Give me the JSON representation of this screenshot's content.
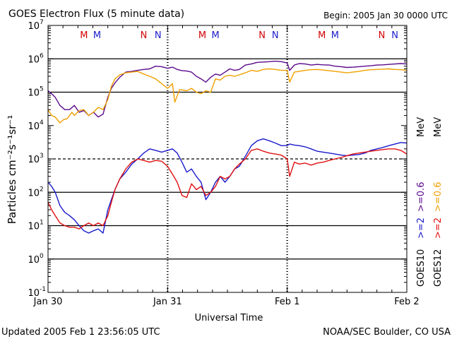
{
  "chart_data": {
    "type": "line",
    "title": "GOES Electron Flux (5 minute data)",
    "begin_label": "Begin: 2005 Jan 30 0000 UTC",
    "xlabel": "Universal Time",
    "ylabel": "Particles cm⁻²s⁻¹sr⁻¹",
    "y_scale": "log",
    "ylim": [
      0.1,
      10000000
    ],
    "y_ticks": [
      {
        "value": 10000000,
        "base": "10",
        "exp": "7"
      },
      {
        "value": 1000000,
        "base": "10",
        "exp": "6"
      },
      {
        "value": 100000,
        "base": "10",
        "exp": "5"
      },
      {
        "value": 10000,
        "base": "10",
        "exp": "4"
      },
      {
        "value": 1000,
        "base": "10",
        "exp": "3"
      },
      {
        "value": 100,
        "base": "10",
        "exp": "2"
      },
      {
        "value": 10,
        "base": "10",
        "exp": "1"
      },
      {
        "value": 1,
        "base": "10",
        "exp": "0"
      },
      {
        "value": 0.1,
        "base": "10",
        "exp": "-1"
      }
    ],
    "x_unit": "days since Jan 30 00:00 UTC",
    "xlim": [
      0,
      3
    ],
    "x_ticks": [
      {
        "value": 0,
        "label": "Jan 30"
      },
      {
        "value": 1,
        "label": "Jan 31"
      },
      {
        "value": 2,
        "label": "Feb 1"
      },
      {
        "value": 3,
        "label": "Feb 2"
      }
    ],
    "day_boundaries": [
      1,
      2
    ],
    "solid_gridlines": [
      1000000,
      100000,
      100,
      10,
      1
    ],
    "dashed_gridlines": [
      1000
    ],
    "grid_color": "#000000",
    "mn_markers": [
      {
        "x": 0.3,
        "label": "M",
        "color": "#d40000"
      },
      {
        "x": 0.41,
        "label": "M",
        "color": "#1a1acc"
      },
      {
        "x": 0.8,
        "label": "N",
        "color": "#d40000"
      },
      {
        "x": 0.92,
        "label": "N",
        "color": "#1a1acc"
      },
      {
        "x": 1.29,
        "label": "M",
        "color": "#d40000"
      },
      {
        "x": 1.4,
        "label": "M",
        "color": "#1a1acc"
      },
      {
        "x": 1.79,
        "label": "N",
        "color": "#d40000"
      },
      {
        "x": 1.9,
        "label": "N",
        "color": "#1a1acc"
      },
      {
        "x": 2.29,
        "label": "M",
        "color": "#d40000"
      },
      {
        "x": 2.4,
        "label": "M",
        "color": "#1a1acc"
      },
      {
        "x": 2.79,
        "label": "N",
        "color": "#d40000"
      },
      {
        "x": 2.9,
        "label": "N",
        "color": "#1a1acc"
      }
    ],
    "legend": {
      "placement": "right",
      "goes10": "GOES10",
      "goes12": "GOES12",
      "g10_2": ">=2",
      "g10_06": ">=0.6",
      "g12_2": ">=2",
      "g12_06": ">=0.6",
      "mev_upper": "MeV",
      "mev_lower": "MeV"
    },
    "series": [
      {
        "name": "GOES10 >=0.6 MeV",
        "color": "#5a0a8c",
        "x": [
          0,
          0.03,
          0.06,
          0.1,
          0.14,
          0.18,
          0.22,
          0.26,
          0.3,
          0.34,
          0.38,
          0.42,
          0.46,
          0.5,
          0.53,
          0.56,
          0.6,
          0.65,
          0.7,
          0.75,
          0.8,
          0.85,
          0.9,
          0.95,
          1.0,
          1.04,
          1.08,
          1.12,
          1.16,
          1.2,
          1.24,
          1.28,
          1.32,
          1.36,
          1.4,
          1.44,
          1.48,
          1.52,
          1.56,
          1.6,
          1.65,
          1.7,
          1.75,
          1.8,
          1.85,
          1.9,
          1.95,
          2.0,
          2.02,
          2.06,
          2.1,
          2.15,
          2.2,
          2.25,
          2.3,
          2.35,
          2.4,
          2.45,
          2.5,
          2.55,
          2.6,
          2.65,
          2.7,
          2.75,
          2.8,
          2.85,
          2.9,
          2.95,
          3.0
        ],
        "values": [
          110000,
          90000,
          70000,
          40000,
          30000,
          30000,
          40000,
          25000,
          28000,
          20000,
          25000,
          18000,
          22000,
          70000,
          130000,
          190000,
          280000,
          400000,
          420000,
          450000,
          480000,
          500000,
          600000,
          580000,
          520000,
          560000,
          480000,
          440000,
          430000,
          400000,
          300000,
          250000,
          200000,
          280000,
          350000,
          320000,
          400000,
          500000,
          450000,
          480000,
          650000,
          700000,
          780000,
          800000,
          820000,
          850000,
          820000,
          750000,
          450000,
          650000,
          720000,
          700000,
          650000,
          680000,
          660000,
          650000,
          600000,
          580000,
          550000,
          560000,
          580000,
          600000,
          620000,
          650000,
          660000,
          680000,
          700000,
          720000,
          700000
        ]
      },
      {
        "name": "GOES12 >=0.6 MeV",
        "color": "#f0a000",
        "x": [
          0,
          0.03,
          0.06,
          0.1,
          0.13,
          0.16,
          0.18,
          0.2,
          0.22,
          0.26,
          0.3,
          0.34,
          0.38,
          0.42,
          0.46,
          0.5,
          0.53,
          0.56,
          0.6,
          0.65,
          0.7,
          0.75,
          0.8,
          0.85,
          0.9,
          0.95,
          1.0,
          1.04,
          1.06,
          1.1,
          1.16,
          1.2,
          1.24,
          1.28,
          1.32,
          1.36,
          1.4,
          1.44,
          1.48,
          1.52,
          1.56,
          1.6,
          1.65,
          1.7,
          1.75,
          1.8,
          1.85,
          1.9,
          1.95,
          2.0,
          2.02,
          2.06,
          2.1,
          2.15,
          2.2,
          2.25,
          2.3,
          2.35,
          2.4,
          2.45,
          2.5,
          2.55,
          2.6,
          2.65,
          2.7,
          2.75,
          2.8,
          2.85,
          2.9,
          2.95,
          3.0
        ],
        "values": [
          30000,
          20000,
          18000,
          12000,
          15000,
          16000,
          20000,
          25000,
          20000,
          28000,
          30000,
          20000,
          25000,
          35000,
          30000,
          60000,
          150000,
          250000,
          330000,
          380000,
          400000,
          420000,
          350000,
          300000,
          250000,
          180000,
          130000,
          180000,
          50000,
          120000,
          110000,
          130000,
          100000,
          90000,
          110000,
          100000,
          250000,
          230000,
          300000,
          320000,
          300000,
          330000,
          380000,
          450000,
          420000,
          480000,
          500000,
          480000,
          450000,
          450000,
          200000,
          400000,
          420000,
          450000,
          470000,
          480000,
          460000,
          440000,
          420000,
          400000,
          380000,
          400000,
          420000,
          450000,
          470000,
          480000,
          490000,
          500000,
          480000,
          470000,
          450000
        ]
      },
      {
        "name": "GOES10 >=2 MeV",
        "color": "#1a1acc",
        "x": [
          0,
          0.03,
          0.06,
          0.1,
          0.14,
          0.18,
          0.22,
          0.26,
          0.3,
          0.34,
          0.38,
          0.42,
          0.46,
          0.5,
          0.53,
          0.56,
          0.6,
          0.65,
          0.7,
          0.75,
          0.8,
          0.85,
          0.9,
          0.95,
          1.0,
          1.04,
          1.08,
          1.12,
          1.16,
          1.2,
          1.24,
          1.28,
          1.32,
          1.36,
          1.4,
          1.44,
          1.48,
          1.52,
          1.56,
          1.6,
          1.65,
          1.7,
          1.75,
          1.8,
          1.85,
          1.9,
          1.95,
          2.0,
          2.02,
          2.06,
          2.1,
          2.15,
          2.2,
          2.25,
          2.3,
          2.35,
          2.4,
          2.45,
          2.5,
          2.55,
          2.6,
          2.65,
          2.7,
          2.75,
          2.8,
          2.85,
          2.9,
          2.95,
          3.0
        ],
        "values": [
          200,
          150,
          100,
          40,
          25,
          20,
          15,
          10,
          7,
          6,
          7,
          8,
          6,
          30,
          60,
          120,
          250,
          400,
          700,
          1000,
          1500,
          2000,
          1800,
          1600,
          1800,
          2000,
          1500,
          800,
          400,
          500,
          300,
          200,
          60,
          100,
          200,
          300,
          200,
          300,
          500,
          600,
          1200,
          2500,
          3500,
          4000,
          3500,
          3000,
          2500,
          2500,
          2800,
          2600,
          2500,
          2300,
          2000,
          1700,
          1600,
          1500,
          1400,
          1300,
          1250,
          1300,
          1350,
          1500,
          1800,
          2000,
          2200,
          2500,
          2800,
          3100,
          3000
        ]
      },
      {
        "name": "GOES12 >=2 MeV",
        "color": "#e01010",
        "x": [
          0,
          0.03,
          0.06,
          0.1,
          0.14,
          0.18,
          0.22,
          0.26,
          0.3,
          0.34,
          0.38,
          0.42,
          0.46,
          0.5,
          0.53,
          0.56,
          0.6,
          0.65,
          0.7,
          0.75,
          0.8,
          0.85,
          0.9,
          0.95,
          1.0,
          1.04,
          1.08,
          1.12,
          1.16,
          1.2,
          1.24,
          1.28,
          1.32,
          1.36,
          1.4,
          1.44,
          1.48,
          1.52,
          1.56,
          1.6,
          1.65,
          1.7,
          1.75,
          1.8,
          1.85,
          1.9,
          1.95,
          2.0,
          2.02,
          2.06,
          2.1,
          2.15,
          2.2,
          2.25,
          2.3,
          2.35,
          2.4,
          2.45,
          2.5,
          2.55,
          2.6,
          2.65,
          2.7,
          2.75,
          2.8,
          2.85,
          2.9,
          2.95,
          3.0
        ],
        "values": [
          50,
          30,
          20,
          12,
          10,
          9,
          9,
          8,
          10,
          12,
          10,
          12,
          10,
          20,
          50,
          120,
          250,
          500,
          800,
          1000,
          900,
          800,
          900,
          850,
          600,
          350,
          200,
          80,
          70,
          180,
          120,
          150,
          80,
          100,
          150,
          300,
          250,
          300,
          500,
          700,
          1000,
          1800,
          2000,
          1700,
          1500,
          1400,
          1300,
          1000,
          300,
          800,
          700,
          750,
          650,
          750,
          800,
          900,
          1000,
          1100,
          1250,
          1400,
          1500,
          1600,
          1700,
          1800,
          1900,
          2000,
          2000,
          1800,
          1400
        ]
      }
    ]
  },
  "footer": {
    "updated": "Updated 2005 Feb  1 23:56:05 UTC",
    "source": "NOAA/SEC Boulder, CO USA"
  }
}
